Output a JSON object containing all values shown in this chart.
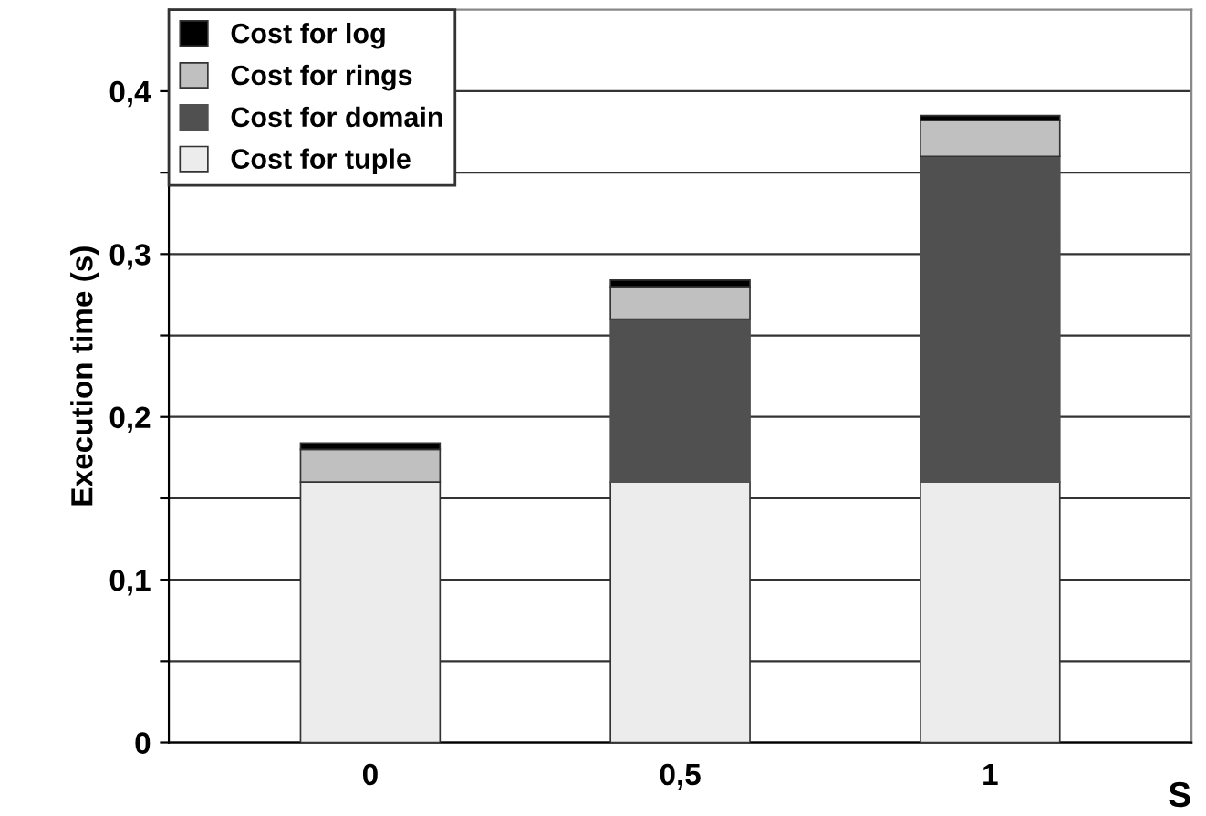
{
  "chart_data": {
    "type": "bar",
    "stacked": true,
    "xlabel": "S",
    "ylabel": "Execution time (s)",
    "categories": [
      "0",
      "0,5",
      "1"
    ],
    "series": [
      {
        "name": "Cost for tuple",
        "color": "#ececec",
        "values": [
          0.16,
          0.16,
          0.16
        ]
      },
      {
        "name": "Cost for domain",
        "color": "#505050",
        "values": [
          0,
          0.1,
          0.2
        ]
      },
      {
        "name": "Cost for rings",
        "color": "#c0c0c0",
        "values": [
          0.02,
          0.02,
          0.022
        ]
      },
      {
        "name": "Cost for log",
        "color": "#000000",
        "values": [
          0.004,
          0.004,
          0.003
        ]
      }
    ],
    "ylim": [
      0,
      0.45
    ],
    "yticks": [
      {
        "value": 0,
        "label": "0"
      },
      {
        "value": 0.05,
        "label": null
      },
      {
        "value": 0.1,
        "label": "0,1"
      },
      {
        "value": 0.15,
        "label": null
      },
      {
        "value": 0.2,
        "label": "0,2"
      },
      {
        "value": 0.25,
        "label": null
      },
      {
        "value": 0.3,
        "label": "0,3"
      },
      {
        "value": 0.35,
        "label": null
      },
      {
        "value": 0.4,
        "label": "0,4"
      }
    ],
    "grid": "y",
    "legend": "top left"
  }
}
